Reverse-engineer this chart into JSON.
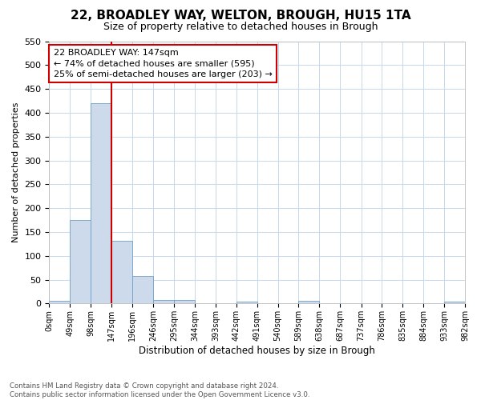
{
  "title": "22, BROADLEY WAY, WELTON, BROUGH, HU15 1TA",
  "subtitle": "Size of property relative to detached houses in Brough",
  "xlabel": "Distribution of detached houses by size in Brough",
  "ylabel": "Number of detached properties",
  "bin_labels": [
    "0sqm",
    "49sqm",
    "98sqm",
    "147sqm",
    "196sqm",
    "246sqm",
    "295sqm",
    "344sqm",
    "393sqm",
    "442sqm",
    "491sqm",
    "540sqm",
    "589sqm",
    "638sqm",
    "687sqm",
    "737sqm",
    "786sqm",
    "835sqm",
    "884sqm",
    "933sqm",
    "982sqm"
  ],
  "bin_counts": [
    5,
    175,
    420,
    132,
    58,
    8,
    8,
    0,
    0,
    4,
    0,
    0,
    5,
    0,
    0,
    0,
    0,
    0,
    0,
    4
  ],
  "bin_edges": [
    0,
    49,
    98,
    147,
    196,
    246,
    295,
    344,
    393,
    442,
    491,
    540,
    589,
    638,
    687,
    737,
    786,
    835,
    884,
    933,
    982
  ],
  "property_size": 147,
  "bar_color": "#ccdaeb",
  "bar_edge_color": "#6fa0c8",
  "vline_color": "#cc0000",
  "vline_x": 147,
  "ylim": [
    0,
    550
  ],
  "yticks": [
    0,
    50,
    100,
    150,
    200,
    250,
    300,
    350,
    400,
    450,
    500,
    550
  ],
  "annotation_text": "22 BROADLEY WAY: 147sqm\n← 74% of detached houses are smaller (595)\n25% of semi-detached houses are larger (203) →",
  "annotation_box_color": "#ffffff",
  "annotation_box_edge": "#cc0000",
  "footer_text": "Contains HM Land Registry data © Crown copyright and database right 2024.\nContains public sector information licensed under the Open Government Licence v3.0.",
  "background_color": "#ffffff",
  "grid_color": "#c5d8ea"
}
